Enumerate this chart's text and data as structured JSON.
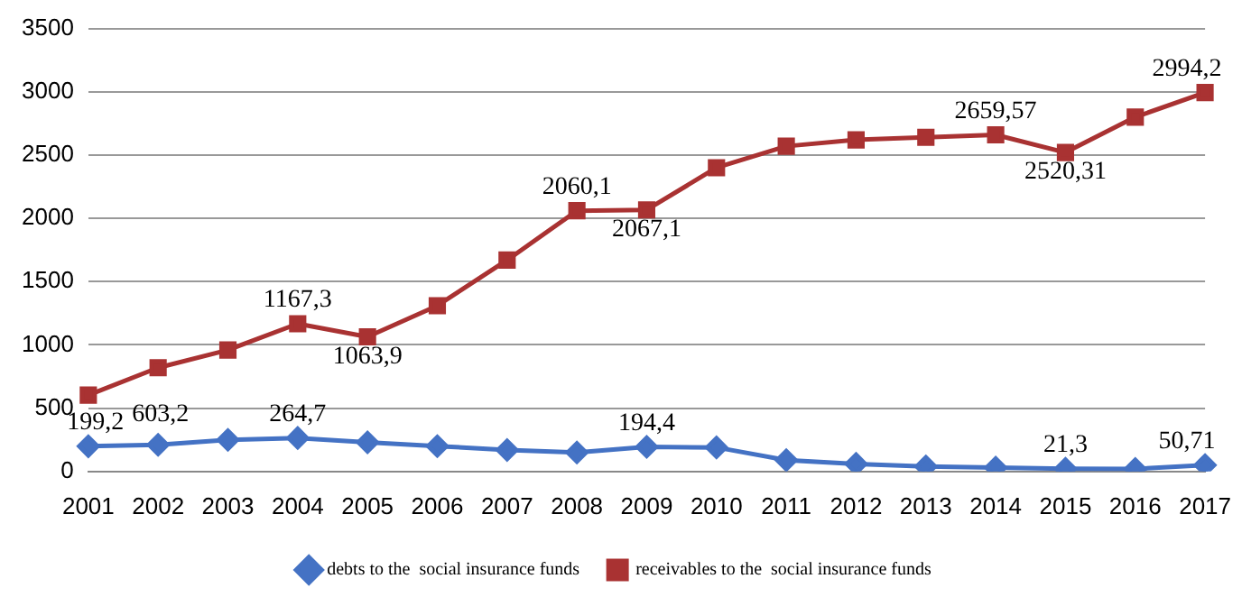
{
  "chart_data": {
    "type": "line",
    "categories": [
      "2001",
      "2002",
      "2003",
      "2004",
      "2005",
      "2006",
      "2007",
      "2008",
      "2009",
      "2010",
      "2011",
      "2012",
      "2013",
      "2014",
      "2015",
      "2016",
      "2017"
    ],
    "series": [
      {
        "name": "debts to the  social insurance funds",
        "color": "#4472c4",
        "marker": "diamond",
        "values": [
          199.2,
          210,
          250,
          264.7,
          230,
          200,
          170,
          150,
          194.4,
          190,
          90,
          60,
          40,
          30,
          21.3,
          20,
          50.71
        ],
        "value_labels": [
          "199,2",
          null,
          null,
          "264,7",
          null,
          null,
          null,
          null,
          "194,4",
          null,
          null,
          null,
          null,
          null,
          "21,3",
          null,
          "50,71"
        ]
      },
      {
        "name": "receivables to the  social insurance funds",
        "color": "#a93232",
        "marker": "square",
        "values": [
          603.2,
          820,
          960,
          1167.3,
          1063.9,
          1310,
          1670,
          2060.1,
          2067.1,
          2400,
          2570,
          2620,
          2640,
          2659.57,
          2520.31,
          2800,
          2994.2
        ],
        "value_labels": [
          "603,2",
          null,
          null,
          "1167,3",
          "1063,9",
          null,
          null,
          "2060,1",
          "2067,1",
          null,
          null,
          null,
          null,
          "2659,57",
          "2520,31",
          null,
          "2994,2"
        ]
      }
    ],
    "ylim": [
      0,
      3500
    ],
    "yticks": [
      0,
      500,
      1000,
      1500,
      2000,
      2500,
      3000,
      3500
    ],
    "grid": "y",
    "legend": "bottom",
    "line_style": "solid"
  }
}
